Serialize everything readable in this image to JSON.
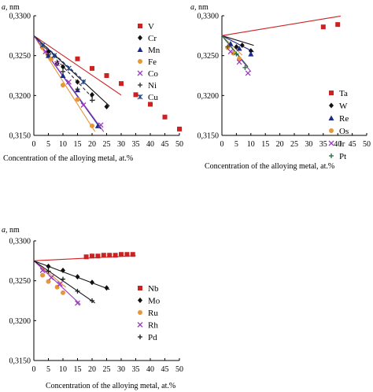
{
  "chart_data": [
    {
      "type": "scatter",
      "ylabel_prefix": "a,",
      "ylabel_unit": "nm",
      "xlabel": "Concentration of the alloying metal, at.%",
      "ylim": [
        0.315,
        0.33
      ],
      "xlim": [
        0,
        50
      ],
      "y_ticks": [
        "0,3150",
        "0,3200",
        "0,3250",
        "0,3300"
      ],
      "x_ticks": [
        "0",
        "5",
        "10",
        "15",
        "20",
        "25",
        "30",
        "35",
        "40",
        "45",
        "50"
      ],
      "legend": "top-right",
      "series": [
        {
          "name": "V",
          "color": "#cc2222",
          "marker": "square",
          "x": [
            15,
            20,
            25,
            30,
            35,
            40,
            45,
            50
          ],
          "y": [
            0.3246,
            0.3234,
            0.3225,
            0.3215,
            0.3201,
            0.3189,
            0.3173,
            0.3158
          ]
        },
        {
          "name": "Cr",
          "color": "#111111",
          "marker": "diamond",
          "x": [
            5,
            8,
            10,
            15,
            20,
            25
          ],
          "y": [
            0.3255,
            0.324,
            0.3236,
            0.3217,
            0.3201,
            0.3186
          ]
        },
        {
          "name": "Mn",
          "color": "#1a2b8c",
          "marker": "triangle",
          "x": [
            5,
            10,
            15,
            22
          ],
          "y": [
            0.325,
            0.3225,
            0.3207,
            0.3162
          ]
        },
        {
          "name": "Fe",
          "color": "#e8963a",
          "marker": "circle",
          "x": [
            3,
            6,
            10,
            15,
            20
          ],
          "y": [
            0.326,
            0.3246,
            0.3213,
            0.3195,
            0.3162
          ]
        },
        {
          "name": "Co",
          "color": "#9b3bbf",
          "marker": "x",
          "x": [
            4,
            8,
            12,
            17,
            23
          ],
          "y": [
            0.3255,
            0.324,
            0.3217,
            0.3188,
            0.3163
          ]
        },
        {
          "name": "Ni",
          "color": "#2a2a2a",
          "marker": "plus",
          "x": [
            5,
            10,
            15,
            20
          ],
          "y": [
            0.3251,
            0.323,
            0.3208,
            0.3194
          ]
        },
        {
          "name": "Cu",
          "color": "#1d3f86",
          "marker": "asterisk",
          "x": [
            3,
            7,
            12,
            17
          ],
          "y": [
            0.3263,
            0.325,
            0.3234,
            0.3217
          ]
        }
      ]
    },
    {
      "type": "scatter",
      "ylabel_prefix": "a,",
      "ylabel_unit": "nm",
      "xlabel": "Concentration of the alloying metal, at.%",
      "ylim": [
        0.315,
        0.33
      ],
      "xlim": [
        0,
        50
      ],
      "y_ticks": [
        "0,3150",
        "0,3200",
        "0,3250",
        "0,3300"
      ],
      "x_ticks": [
        "0",
        "5",
        "10",
        "15",
        "20",
        "25",
        "30",
        "35",
        "40",
        "45",
        "50"
      ],
      "legend": "right",
      "series": [
        {
          "name": "Ta",
          "color": "#cc2222",
          "marker": "square",
          "x": [
            35,
            40
          ],
          "y": [
            0.3286,
            0.3289
          ]
        },
        {
          "name": "W",
          "color": "#111111",
          "marker": "diamond",
          "x": [
            5,
            7,
            10
          ],
          "y": [
            0.3261,
            0.3263,
            0.3256
          ]
        },
        {
          "name": "Re",
          "color": "#1a2b8c",
          "marker": "triangle",
          "x": [
            3,
            6,
            10
          ],
          "y": [
            0.3265,
            0.3259,
            0.3252
          ]
        },
        {
          "name": "Os",
          "color": "#e8963a",
          "marker": "circle",
          "x": [
            2,
            4,
            6
          ],
          "y": [
            0.326,
            0.3253,
            0.3246
          ]
        },
        {
          "name": "Ir",
          "color": "#9b3bbf",
          "marker": "x",
          "x": [
            3,
            6,
            9
          ],
          "y": [
            0.3255,
            0.3242,
            0.3228
          ]
        },
        {
          "name": "Pt",
          "color": "#1f6b3a",
          "marker": "plus",
          "x": [
            2,
            5,
            8
          ],
          "y": [
            0.3261,
            0.3252,
            0.3235
          ]
        }
      ]
    },
    {
      "type": "scatter",
      "ylabel_prefix": "a,",
      "ylabel_unit": "nm",
      "xlabel": "Concentration of the alloying metal, at.%",
      "ylim": [
        0.315,
        0.33
      ],
      "xlim": [
        0,
        50
      ],
      "y_ticks": [
        "0,3150",
        "0,3200",
        "0,3250",
        "0,3300"
      ],
      "x_ticks": [
        "0",
        "5",
        "10",
        "15",
        "20",
        "25",
        "30",
        "35",
        "40",
        "45",
        "50"
      ],
      "legend": "right",
      "series": [
        {
          "name": "Nb",
          "color": "#cc2222",
          "marker": "square",
          "x": [
            18,
            20,
            22,
            24,
            26,
            28,
            30,
            32,
            34
          ],
          "y": [
            0.328,
            0.3281,
            0.3281,
            0.3282,
            0.3282,
            0.3282,
            0.3283,
            0.3283,
            0.3283
          ]
        },
        {
          "name": "Mo",
          "color": "#111111",
          "marker": "diamond",
          "x": [
            5,
            10,
            15,
            20,
            25
          ],
          "y": [
            0.3268,
            0.3263,
            0.3255,
            0.3248,
            0.3241
          ]
        },
        {
          "name": "Ru",
          "color": "#e8963a",
          "marker": "circle",
          "x": [
            3,
            5,
            8,
            10
          ],
          "y": [
            0.3257,
            0.3249,
            0.3242,
            0.3235
          ]
        },
        {
          "name": "Rh",
          "color": "#9b3bbf",
          "marker": "x",
          "x": [
            3,
            6,
            9,
            15
          ],
          "y": [
            0.3263,
            0.3254,
            0.3246,
            0.3222
          ]
        },
        {
          "name": "Pd",
          "color": "#1a1a1a",
          "marker": "plus",
          "x": [
            5,
            10,
            15,
            20
          ],
          "y": [
            0.3262,
            0.3252,
            0.3237,
            0.3225
          ]
        }
      ]
    }
  ]
}
